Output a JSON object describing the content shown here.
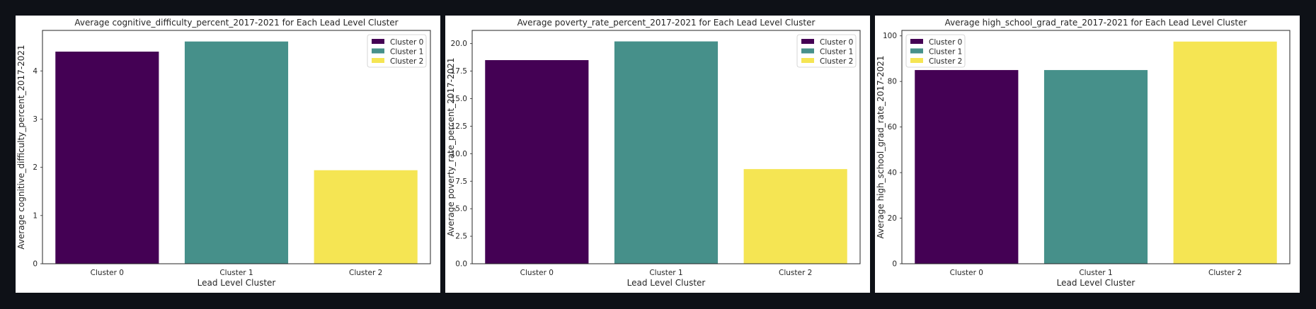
{
  "chart_data": [
    {
      "type": "bar",
      "title": "Average cognitive_difficulty_percent_2017-2021 for Each Lead Level Cluster",
      "xlabel": "Lead Level Cluster",
      "ylabel": "Average cognitive_difficulty_percent_2017-2021",
      "categories": [
        "Cluster 0",
        "Cluster 1",
        "Cluster 2"
      ],
      "values": [
        4.4,
        4.61,
        1.94
      ],
      "colors": [
        "#440154",
        "#46908a",
        "#f5e553"
      ],
      "ylim": [
        0,
        4.84
      ],
      "yticks": [
        0,
        1,
        2,
        3,
        4
      ],
      "ytick_labels": [
        "0",
        "1",
        "2",
        "3",
        "4"
      ],
      "legend": [
        "Cluster 0",
        "Cluster 1",
        "Cluster 2"
      ],
      "legend_position": "upper right"
    },
    {
      "type": "bar",
      "title": "Average poverty_rate_percent_2017-2021 for Each Lead Level Cluster",
      "xlabel": "Lead Level Cluster",
      "ylabel": "Average poverty_rate_percent_2017-2021",
      "categories": [
        "Cluster 0",
        "Cluster 1",
        "Cluster 2"
      ],
      "values": [
        18.5,
        20.2,
        8.6
      ],
      "colors": [
        "#440154",
        "#46908a",
        "#f5e553"
      ],
      "ylim": [
        0,
        21.2
      ],
      "yticks": [
        0,
        2.5,
        5,
        7.5,
        10,
        12.5,
        15,
        17.5,
        20
      ],
      "ytick_labels": [
        "0.0",
        "2.5",
        "5.0",
        "7.5",
        "10.0",
        "12.5",
        "15.0",
        "17.5",
        "20.0"
      ],
      "legend": [
        "Cluster 0",
        "Cluster 1",
        "Cluster 2"
      ],
      "legend_position": "upper right"
    },
    {
      "type": "bar",
      "title": "Average high_school_grad_rate_2017-2021 for Each Lead Level Cluster",
      "xlabel": "Lead Level Cluster",
      "ylabel": "Average high_school_grad_rate_2017-2021",
      "categories": [
        "Cluster 0",
        "Cluster 1",
        "Cluster 2"
      ],
      "values": [
        85.0,
        85.0,
        97.5
      ],
      "colors": [
        "#440154",
        "#46908a",
        "#f5e553"
      ],
      "ylim": [
        0,
        102.4
      ],
      "yticks": [
        0,
        20,
        40,
        60,
        80,
        100
      ],
      "ytick_labels": [
        "0",
        "20",
        "40",
        "60",
        "80",
        "100"
      ],
      "legend": [
        "Cluster 0",
        "Cluster 1",
        "Cluster 2"
      ],
      "legend_position": "upper left"
    }
  ]
}
